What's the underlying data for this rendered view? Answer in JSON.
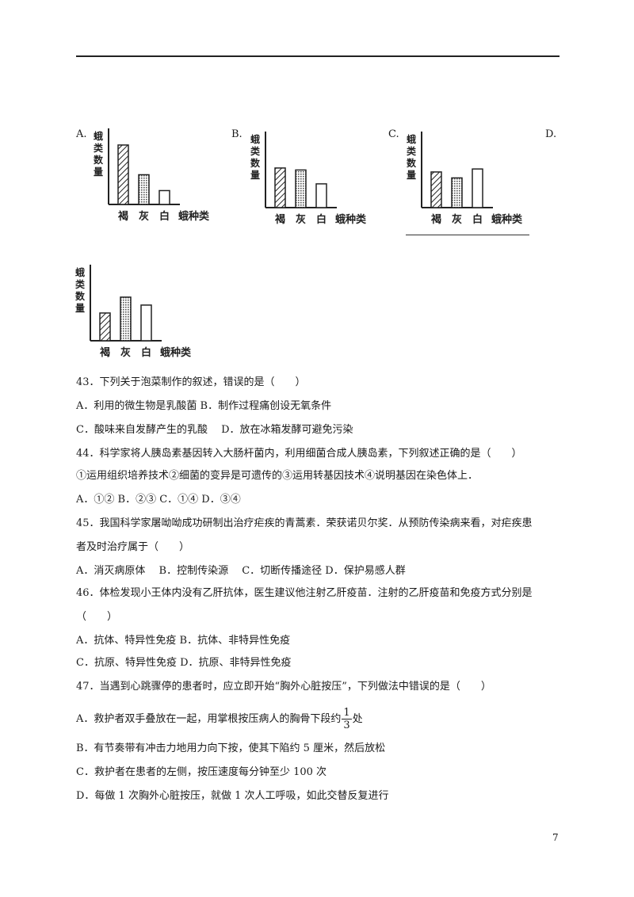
{
  "charts": {
    "y_label": [
      "蛾",
      "类",
      "数",
      "量"
    ],
    "categories": [
      "褐",
      "灰",
      "白"
    ],
    "x_title": "蛾种类",
    "options": [
      {
        "label": "A.",
        "values": [
          3,
          1.5,
          0.7
        ]
      },
      {
        "label": "B.",
        "values": [
          2,
          1.9,
          1.2
        ]
      },
      {
        "label": "C.",
        "values": [
          1.8,
          1.5,
          1.95
        ]
      },
      {
        "label": "D.",
        "values": [
          1.4,
          2.2,
          1.8
        ]
      }
    ]
  },
  "questions": {
    "q43": {
      "stem": "43．下列关于泡菜制作的叙述，错误的是（　　）",
      "line1": "A．利用的微生物是乳酸菌 B．制作过程痛创设无氧条件",
      "line2": "C．酸味来自发酵产生的乳酸　 D．放在冰箱发酵可避免污染"
    },
    "q44": {
      "stem": "44．科学家将人胰岛素基因转入大肠杆菌内，利用细菌合成人胰岛素，下列叙述正确的是（　　）",
      "items": "①运用组织培养技术②细菌的变异是可遗传的③运用转基因技术④说明基因在染色体上．",
      "options": "A．①② B．②③ C．①④ D．③④"
    },
    "q45": {
      "stem1": "45．我国科学家屠呦呦成功研制出治疗疟疾的青蒿素．荣获诺贝尔奖．从预防传染病来看，对疟疾患",
      "stem2": "者及时治疗属于（　　）",
      "options": "A．消灭病原体　 B．控制传染源　 C．切断传播途径 D．保护易感人群"
    },
    "q46": {
      "stem1": "46．体检发现小王体内没有乙肝抗体，医生建议他注射乙肝疫苗．注射的乙肝疫苗和免疫方式分别是",
      "stem2": "（　　）",
      "line1": "A．抗体、特异性免疫 B．抗体、非特异性免疫",
      "line2": "C．抗原、特异性免疫 D．抗原、非特异性免疫"
    },
    "q47": {
      "stem": "47．当遇到心跳骤停的患者时，应立即开始“胸外心脏按压”，下列做法中错误的是（　　）",
      "optA_pre": "A．救护者双手叠放在一起，用掌根按压病人的胸骨下段约",
      "optA_num": "1",
      "optA_den": "3",
      "optA_post": "处",
      "optB": "B．有节奏带有冲击力地用力向下按，使其下陷约 5 厘米，然后放松",
      "optC": "C．救护者在患者的左侧，按压速度每分钟至少 100 次",
      "optD": "D．每做 1 次胸外心脏按压，就做 1 次人工呼吸，如此交替反复进行"
    }
  },
  "page_number": "7"
}
